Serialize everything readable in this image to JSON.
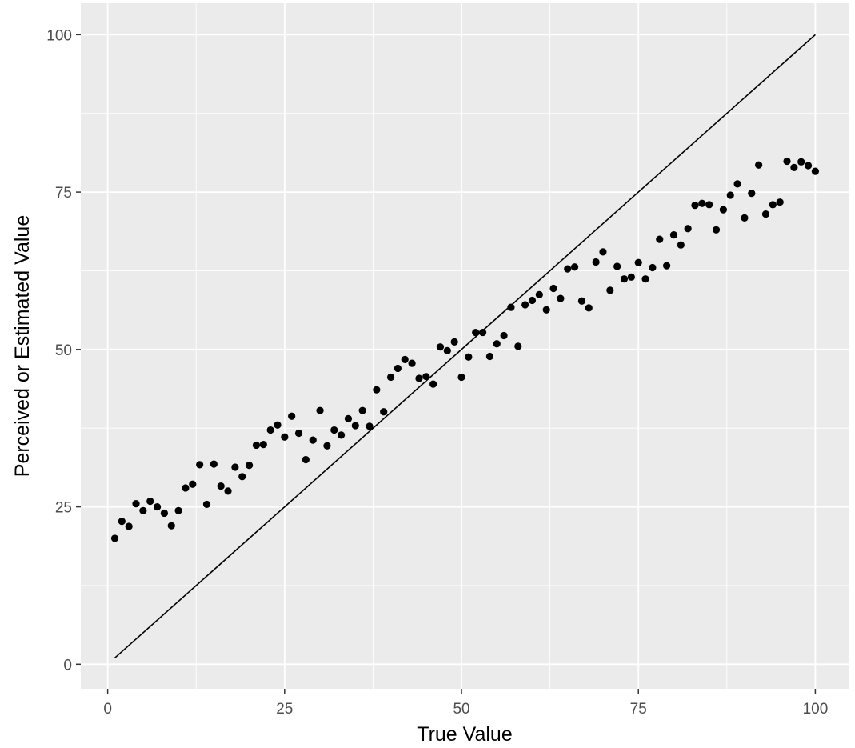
{
  "chart_data": {
    "type": "scatter",
    "title": "",
    "xlabel": "True Value",
    "ylabel": "Perceived or Estimated Value",
    "xlim": [
      -3.8,
      104.7
    ],
    "ylim": [
      -3.9,
      105
    ],
    "x_ticks": [
      0,
      25,
      50,
      75,
      100
    ],
    "y_ticks": [
      0,
      25,
      50,
      75,
      100
    ],
    "x_tick_labels": [
      "0",
      "25",
      "50",
      "75",
      "100"
    ],
    "y_tick_labels": [
      "0",
      "25",
      "50",
      "75",
      "100"
    ],
    "grid": true,
    "background": "#ebebeb",
    "grid_color": "#ffffff",
    "point_color": "#000000",
    "line_color": "#000000",
    "series": [
      {
        "type": "scatter",
        "x": [
          1,
          2,
          3,
          4,
          5,
          6,
          7,
          8,
          9,
          10,
          11,
          12,
          13,
          14,
          15,
          16,
          17,
          18,
          19,
          20,
          21,
          22,
          23,
          24,
          25,
          26,
          27,
          28,
          29,
          30,
          31,
          32,
          33,
          34,
          35,
          36,
          37,
          38,
          39,
          40,
          41,
          42,
          43,
          44,
          45,
          46,
          47,
          48,
          49,
          50,
          51,
          52,
          53,
          54,
          55,
          56,
          57,
          58,
          59,
          60,
          61,
          62,
          63,
          64,
          65,
          66,
          67,
          68,
          69,
          70,
          71,
          72,
          73,
          74,
          75,
          76,
          77,
          78,
          79,
          80,
          81,
          82,
          83,
          84,
          85,
          86,
          87,
          88,
          89,
          90,
          91,
          92,
          93,
          94,
          95,
          96,
          97,
          98,
          99,
          100
        ],
        "y": [
          20.0,
          22.7,
          21.9,
          25.5,
          24.4,
          25.9,
          25.0,
          24.0,
          22.0,
          24.4,
          28.0,
          28.6,
          31.7,
          25.4,
          31.8,
          28.3,
          27.5,
          31.3,
          29.8,
          31.6,
          34.8,
          34.9,
          37.2,
          38.0,
          36.1,
          39.4,
          36.7,
          32.5,
          35.6,
          40.3,
          34.7,
          37.2,
          36.4,
          39.0,
          37.9,
          40.3,
          37.8,
          43.6,
          40.1,
          45.6,
          47.0,
          48.4,
          47.8,
          45.4,
          45.7,
          44.5,
          50.4,
          49.8,
          51.2,
          45.6,
          48.8,
          52.7,
          52.7,
          48.9,
          50.9,
          52.2,
          56.7,
          50.5,
          57.1,
          57.8,
          58.7,
          56.3,
          59.7,
          58.1,
          62.8,
          63.1,
          57.7,
          56.6,
          63.9,
          65.5,
          59.4,
          63.2,
          61.2,
          61.5,
          63.8,
          61.2,
          63.0,
          67.5,
          63.3,
          68.2,
          66.6,
          69.2,
          72.9,
          73.2,
          73.0,
          69.0,
          72.2,
          74.5,
          76.3,
          70.9,
          74.8,
          79.3,
          71.5,
          73.0,
          73.4,
          79.9,
          78.9,
          79.8,
          79.2,
          78.3
        ]
      },
      {
        "type": "line",
        "x": [
          1,
          100
        ],
        "y": [
          1,
          100
        ]
      }
    ]
  }
}
